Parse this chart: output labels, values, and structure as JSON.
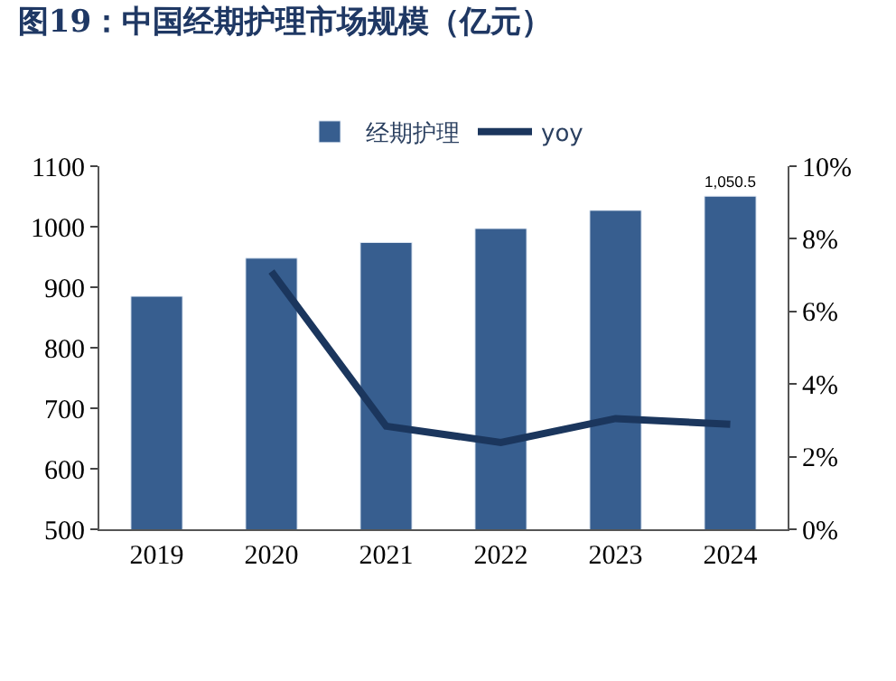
{
  "chart_data": {
    "type": "bar",
    "title": "图19：中国经期护理市场规模（亿元）",
    "categories": [
      "2019",
      "2020",
      "2021",
      "2022",
      "2023",
      "2024"
    ],
    "series": [
      {
        "name": "经期护理",
        "color": "#375e8f",
        "values": [
          885,
          948,
          974,
          997,
          1027,
          1050.5
        ],
        "value_labels": [
          null,
          null,
          null,
          null,
          null,
          "1,050.5"
        ]
      },
      {
        "name": "yoy",
        "type": "line",
        "axis": "y2",
        "color": "#1b365d",
        "values": [
          null,
          7.1,
          2.84,
          2.39,
          3.05,
          2.89
        ]
      }
    ],
    "ylim": [
      500,
      1100
    ],
    "yticks": [
      500,
      600,
      700,
      800,
      900,
      1000,
      1100
    ],
    "y2lim": [
      0,
      10
    ],
    "y2ticks": [
      {
        "value": 0,
        "label": "0%"
      },
      {
        "value": 2,
        "label": "2%"
      },
      {
        "value": 4,
        "label": "4%"
      },
      {
        "value": 6,
        "label": "6%"
      },
      {
        "value": 8,
        "label": "8%"
      },
      {
        "value": 10,
        "label": "10%"
      }
    ],
    "legend": "top",
    "marker": "none",
    "line_style": "solid"
  }
}
